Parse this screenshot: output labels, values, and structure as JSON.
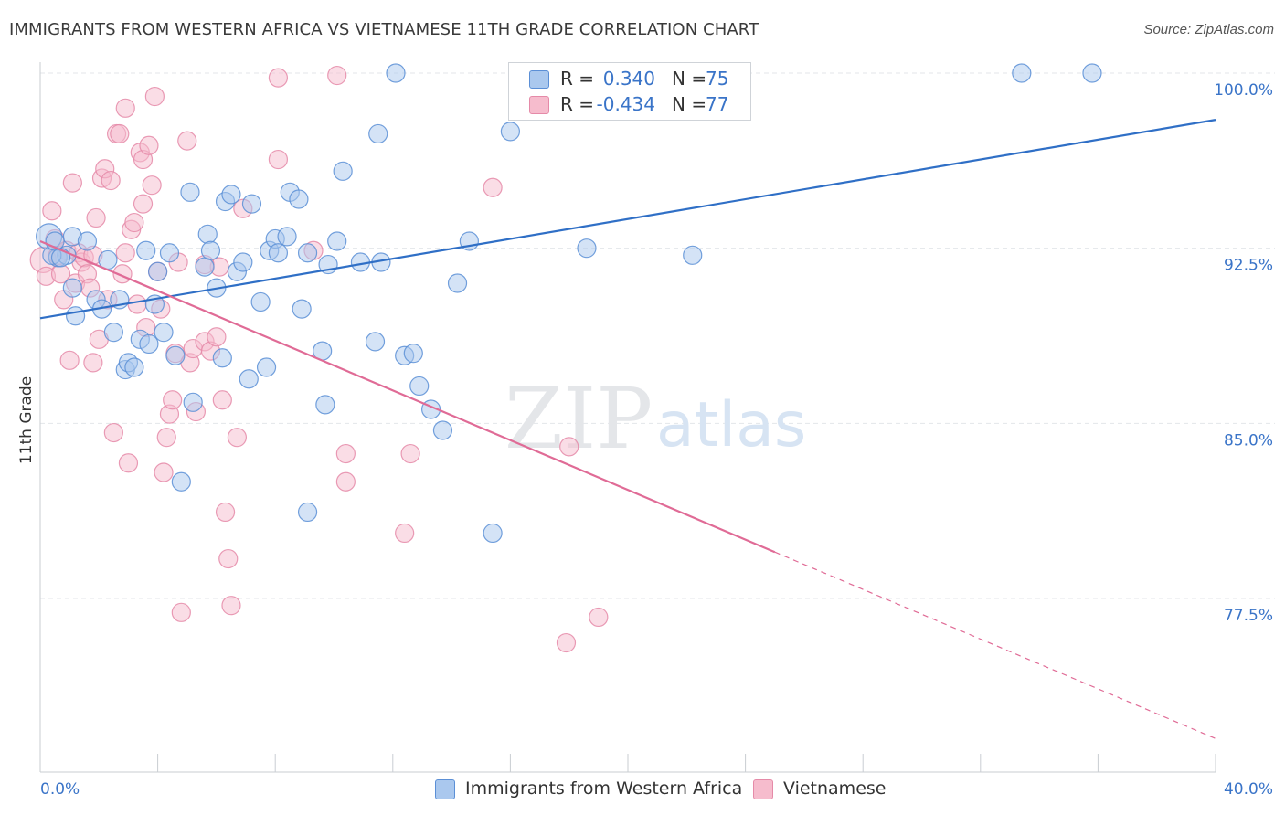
{
  "title": "IMMIGRANTS FROM WESTERN AFRICA VS VIETNAMESE 11TH GRADE CORRELATION CHART",
  "source": "Source: ZipAtlas.com",
  "watermark": {
    "zip": "ZIP",
    "atlas": "atlas"
  },
  "colors": {
    "blue_fill": "#aac8ee",
    "blue_stroke": "#5b8fd6",
    "blue_line": "#2f6fc6",
    "pink_fill": "#f6bccd",
    "pink_stroke": "#e58aa8",
    "pink_line": "#e06b96",
    "tick_label": "#3a74c8",
    "grid": "#e3e6ea"
  },
  "legend": {
    "rows": [
      {
        "r_label": "R =",
        "r_value": "0.340",
        "n_label": "N =",
        "n_value": "75",
        "color": "blue"
      },
      {
        "r_label": "R =",
        "r_value": "-0.434",
        "n_label": "N =",
        "n_value": "77",
        "color": "pink"
      }
    ]
  },
  "bottom_legend": [
    {
      "label": "Immigrants from Western Africa",
      "color": "blue"
    },
    {
      "label": "Vietnamese",
      "color": "pink"
    }
  ],
  "chart_data": {
    "type": "scatter",
    "title": "IMMIGRANTS FROM WESTERN AFRICA VS VIETNAMESE 11TH GRADE CORRELATION CHART",
    "xlabel": "",
    "ylabel": "11th Grade",
    "xlim": [
      0,
      40
    ],
    "ylim": [
      71.5,
      101.5
    ],
    "x_tick_labels": [
      "0.0%",
      "40.0%"
    ],
    "y_ticks": [
      77.5,
      85.0,
      92.5,
      100.0
    ],
    "y_tick_labels": [
      "77.5%",
      "85.0%",
      "92.5%",
      "100.0%"
    ],
    "grid": true,
    "legend_position": "top-center",
    "series": [
      {
        "name": "Immigrants from Western Africa",
        "color": "blue",
        "trend": {
          "x": [
            0,
            40
          ],
          "y": [
            89.5,
            98.0
          ],
          "dashed_from": null
        },
        "points": [
          [
            0.3,
            93.0,
            14
          ],
          [
            0.6,
            92.1,
            10
          ],
          [
            0.9,
            92.2,
            10
          ],
          [
            1.1,
            93.0,
            10
          ],
          [
            1.6,
            92.8,
            10
          ],
          [
            1.1,
            90.8,
            10
          ],
          [
            1.2,
            89.6,
            10
          ],
          [
            1.9,
            90.3,
            10
          ],
          [
            2.1,
            89.9,
            10
          ],
          [
            2.3,
            92.0,
            10
          ],
          [
            2.5,
            88.9,
            10
          ],
          [
            2.7,
            90.3,
            10
          ],
          [
            2.9,
            87.3,
            10
          ],
          [
            3.0,
            87.6,
            10
          ],
          [
            3.2,
            87.4,
            10
          ],
          [
            3.4,
            88.6,
            10
          ],
          [
            3.6,
            92.4,
            10
          ],
          [
            3.7,
            88.4,
            10
          ],
          [
            3.9,
            90.1,
            10
          ],
          [
            4.0,
            91.5,
            10
          ],
          [
            4.2,
            88.9,
            10
          ],
          [
            4.4,
            92.3,
            10
          ],
          [
            4.6,
            87.9,
            10
          ],
          [
            4.8,
            82.5,
            10
          ],
          [
            5.1,
            94.9,
            10
          ],
          [
            5.2,
            85.9,
            10
          ],
          [
            5.6,
            91.7,
            10
          ],
          [
            5.7,
            93.1,
            10
          ],
          [
            5.8,
            92.4,
            10
          ],
          [
            6.0,
            90.8,
            10
          ],
          [
            6.2,
            87.8,
            10
          ],
          [
            6.3,
            94.5,
            10
          ],
          [
            6.5,
            94.8,
            10
          ],
          [
            6.7,
            91.5,
            10
          ],
          [
            6.9,
            91.9,
            10
          ],
          [
            7.1,
            86.9,
            10
          ],
          [
            7.2,
            94.4,
            10
          ],
          [
            7.5,
            90.2,
            10
          ],
          [
            7.7,
            87.4,
            10
          ],
          [
            7.8,
            92.4,
            10
          ],
          [
            8.0,
            92.9,
            10
          ],
          [
            8.1,
            92.3,
            10
          ],
          [
            8.4,
            93.0,
            10
          ],
          [
            8.5,
            94.9,
            10
          ],
          [
            8.8,
            94.6,
            10
          ],
          [
            8.9,
            89.9,
            10
          ],
          [
            9.1,
            92.3,
            10
          ],
          [
            9.1,
            81.2,
            10
          ],
          [
            9.6,
            88.1,
            10
          ],
          [
            9.7,
            85.8,
            10
          ],
          [
            9.8,
            91.8,
            10
          ],
          [
            10.1,
            92.8,
            10
          ],
          [
            10.3,
            95.8,
            10
          ],
          [
            10.9,
            91.9,
            10
          ],
          [
            11.4,
            88.5,
            10
          ],
          [
            11.5,
            97.4,
            10
          ],
          [
            11.6,
            91.9,
            10
          ],
          [
            12.1,
            100.0,
            10
          ],
          [
            12.4,
            87.9,
            10
          ],
          [
            12.7,
            88.0,
            10
          ],
          [
            12.9,
            86.6,
            10
          ],
          [
            13.3,
            85.6,
            10
          ],
          [
            13.7,
            84.7,
            10
          ],
          [
            14.2,
            91.0,
            10
          ],
          [
            14.6,
            92.8,
            10
          ],
          [
            15.4,
            80.3,
            10
          ],
          [
            16.0,
            97.5,
            10
          ],
          [
            16.5,
            100.0,
            10
          ],
          [
            18.6,
            92.5,
            10
          ],
          [
            22.2,
            92.2,
            10
          ],
          [
            33.4,
            100.0,
            10
          ],
          [
            35.8,
            100.0,
            10
          ],
          [
            0.4,
            92.2,
            10
          ],
          [
            0.5,
            92.8,
            10
          ],
          [
            0.7,
            92.1,
            10
          ]
        ]
      },
      {
        "name": "Vietnamese",
        "color": "pink",
        "trend": {
          "x": [
            0,
            40
          ],
          "y": [
            92.8,
            71.5
          ],
          "dashed_from": 25.0
        },
        "points": [
          [
            0.1,
            92.0,
            14
          ],
          [
            0.2,
            91.3,
            10
          ],
          [
            0.4,
            94.1,
            10
          ],
          [
            0.5,
            92.9,
            10
          ],
          [
            0.6,
            92.2,
            10
          ],
          [
            0.7,
            91.4,
            10
          ],
          [
            0.8,
            90.3,
            10
          ],
          [
            0.9,
            92.4,
            10
          ],
          [
            1.0,
            87.7,
            10
          ],
          [
            1.1,
            95.3,
            10
          ],
          [
            1.2,
            91.0,
            10
          ],
          [
            1.3,
            92.3,
            10
          ],
          [
            1.4,
            91.9,
            10
          ],
          [
            1.5,
            92.1,
            10
          ],
          [
            1.6,
            91.4,
            10
          ],
          [
            1.7,
            90.8,
            10
          ],
          [
            1.8,
            87.6,
            10
          ],
          [
            1.9,
            93.8,
            10
          ],
          [
            2.0,
            88.6,
            10
          ],
          [
            2.1,
            95.5,
            10
          ],
          [
            2.2,
            95.9,
            10
          ],
          [
            2.3,
            90.3,
            10
          ],
          [
            2.4,
            95.4,
            10
          ],
          [
            2.5,
            84.6,
            10
          ],
          [
            2.6,
            97.4,
            10
          ],
          [
            2.7,
            97.4,
            10
          ],
          [
            2.8,
            91.4,
            10
          ],
          [
            2.9,
            98.5,
            10
          ],
          [
            3.0,
            83.3,
            10
          ],
          [
            3.1,
            93.3,
            10
          ],
          [
            3.2,
            93.6,
            10
          ],
          [
            3.3,
            90.1,
            10
          ],
          [
            3.4,
            96.6,
            10
          ],
          [
            3.5,
            96.3,
            10
          ],
          [
            3.6,
            89.1,
            10
          ],
          [
            3.7,
            96.9,
            10
          ],
          [
            3.8,
            95.2,
            10
          ],
          [
            3.9,
            99.0,
            10
          ],
          [
            4.0,
            91.5,
            10
          ],
          [
            4.1,
            89.9,
            10
          ],
          [
            4.2,
            82.9,
            10
          ],
          [
            4.3,
            84.4,
            10
          ],
          [
            4.4,
            85.4,
            10
          ],
          [
            4.5,
            86.0,
            10
          ],
          [
            4.6,
            88.0,
            10
          ],
          [
            4.7,
            91.9,
            10
          ],
          [
            4.8,
            76.9,
            10
          ],
          [
            5.0,
            97.1,
            10
          ],
          [
            5.1,
            87.6,
            10
          ],
          [
            5.2,
            88.2,
            10
          ],
          [
            5.3,
            85.5,
            10
          ],
          [
            5.6,
            88.5,
            10
          ],
          [
            5.8,
            88.1,
            10
          ],
          [
            6.1,
            91.7,
            10
          ],
          [
            6.2,
            86.0,
            10
          ],
          [
            6.3,
            81.2,
            10
          ],
          [
            6.4,
            79.2,
            10
          ],
          [
            6.5,
            77.2,
            10
          ],
          [
            6.7,
            84.4,
            10
          ],
          [
            6.9,
            94.2,
            10
          ],
          [
            8.1,
            99.8,
            10
          ],
          [
            8.1,
            96.3,
            10
          ],
          [
            9.3,
            92.4,
            10
          ],
          [
            10.1,
            99.9,
            10
          ],
          [
            10.4,
            83.7,
            10
          ],
          [
            10.4,
            82.5,
            10
          ],
          [
            12.4,
            80.3,
            10
          ],
          [
            12.6,
            83.7,
            10
          ],
          [
            15.4,
            95.1,
            10
          ],
          [
            18.0,
            84.0,
            10
          ],
          [
            17.9,
            75.6,
            10
          ],
          [
            19.0,
            76.7,
            10
          ],
          [
            5.6,
            91.8,
            10
          ],
          [
            6.0,
            88.7,
            10
          ],
          [
            3.5,
            94.4,
            10
          ],
          [
            2.9,
            92.3,
            10
          ],
          [
            1.8,
            92.2,
            10
          ]
        ]
      }
    ]
  }
}
